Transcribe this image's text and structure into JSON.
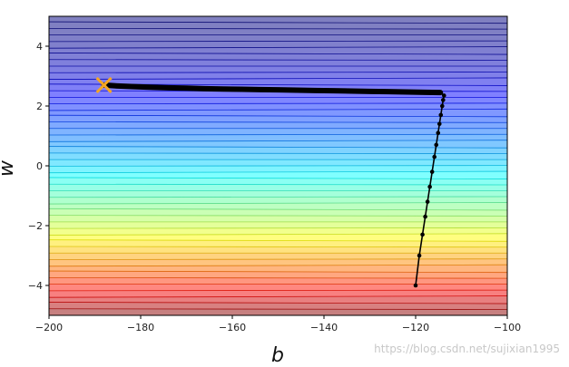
{
  "chart_data": {
    "type": "contour",
    "title": "",
    "xlabel": "b",
    "ylabel": "w",
    "xlim": [
      -200,
      -100
    ],
    "ylim": [
      -5,
      5
    ],
    "x_ticks": [
      -200,
      -180,
      -160,
      -140,
      -120,
      -100
    ],
    "y_ticks": [
      -4,
      -2,
      0,
      2,
      4
    ],
    "x_tick_labels": [
      "−200",
      "−180",
      "−160",
      "−140",
      "−120",
      "−100"
    ],
    "y_tick_labels": [
      "−4",
      "−2",
      "0",
      "2",
      "4"
    ],
    "colormap": "jet",
    "contour_fill_opacity": 0.5,
    "grid": false,
    "target": {
      "b": -188,
      "w": 2.7,
      "marker": "x",
      "color": "#f5a623"
    },
    "trajectory": {
      "color": "#000000",
      "points": [
        [
          -120,
          -4.0
        ],
        [
          -119.2,
          -3.0
        ],
        [
          -118.5,
          -2.3
        ],
        [
          -117.9,
          -1.7
        ],
        [
          -117.4,
          -1.2
        ],
        [
          -116.9,
          -0.7
        ],
        [
          -116.4,
          -0.2
        ],
        [
          -115.9,
          0.3
        ],
        [
          -115.5,
          0.7
        ],
        [
          -115.1,
          1.1
        ],
        [
          -114.8,
          1.4
        ],
        [
          -114.5,
          1.7
        ],
        [
          -114.2,
          2.0
        ],
        [
          -114.0,
          2.2
        ],
        [
          -113.8,
          2.35
        ],
        [
          -114.6,
          2.45
        ],
        [
          -118,
          2.46
        ],
        [
          -122,
          2.47
        ],
        [
          -126,
          2.48
        ],
        [
          -130,
          2.49
        ],
        [
          -134,
          2.5
        ],
        [
          -138,
          2.51
        ],
        [
          -142,
          2.52
        ],
        [
          -146,
          2.53
        ],
        [
          -150,
          2.54
        ],
        [
          -154,
          2.55
        ],
        [
          -158,
          2.56
        ],
        [
          -162,
          2.57
        ],
        [
          -166,
          2.58
        ],
        [
          -170,
          2.6
        ],
        [
          -174,
          2.61
        ],
        [
          -178,
          2.63
        ],
        [
          -182,
          2.65
        ],
        [
          -185,
          2.67
        ],
        [
          -188,
          2.7
        ]
      ]
    }
  },
  "watermark": "https://blog.csdn.net/sujixian1995"
}
